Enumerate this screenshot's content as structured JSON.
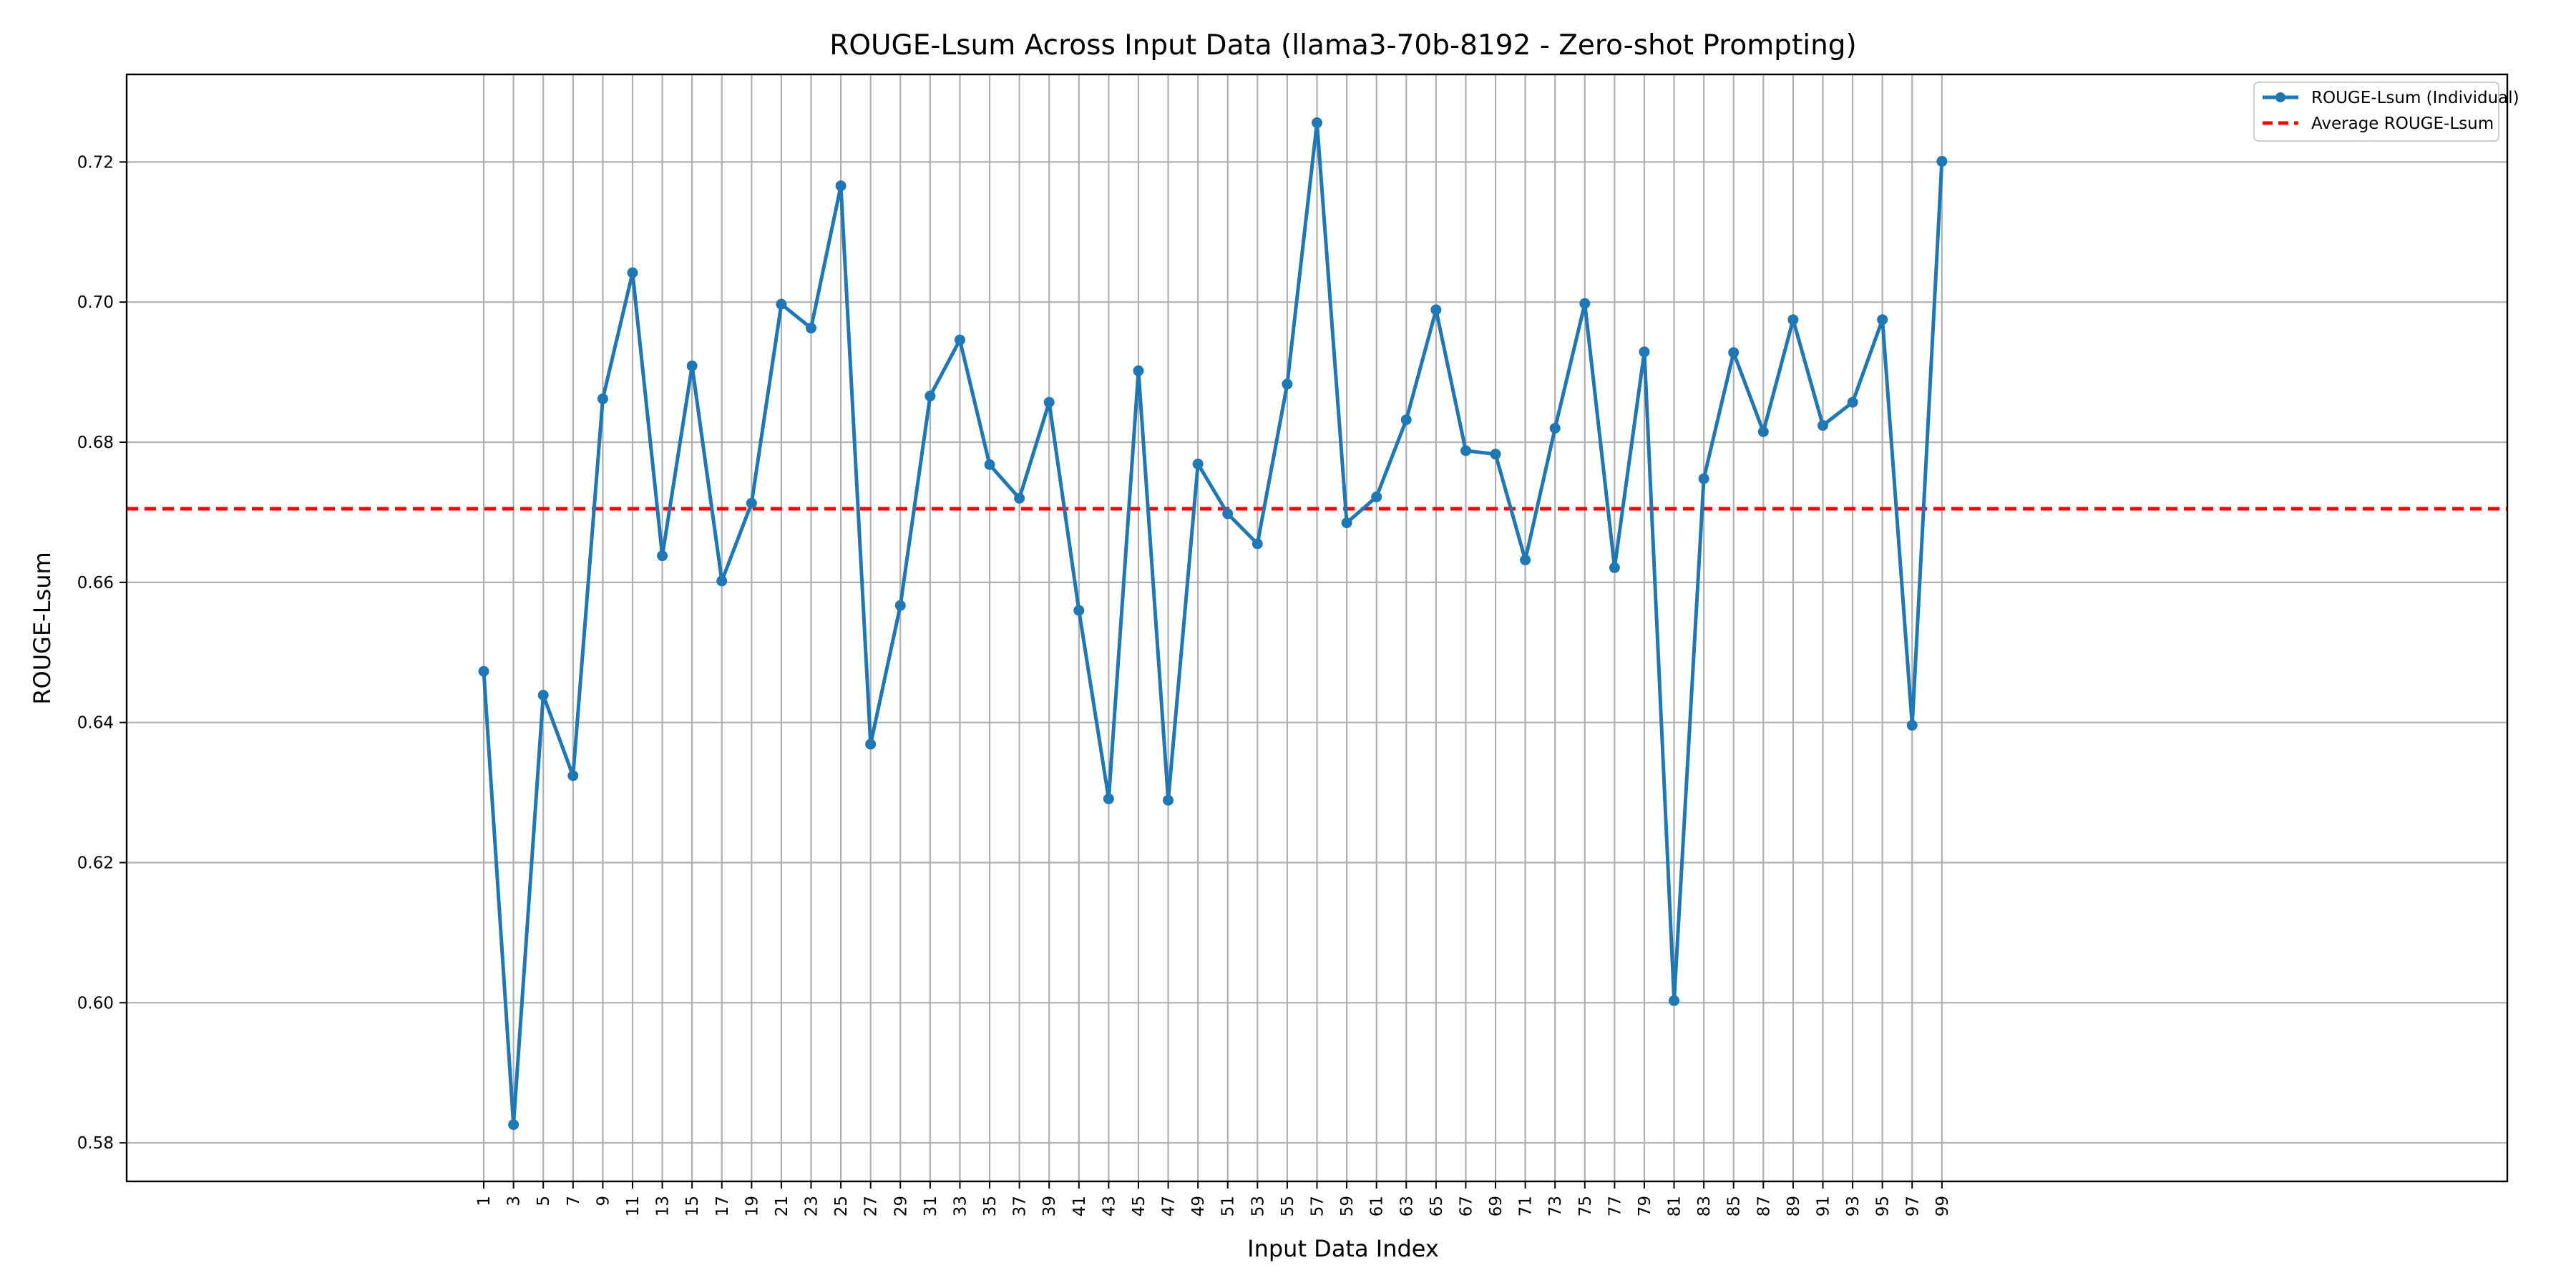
{
  "chart_data": {
    "type": "line",
    "title": "ROUGE-Lsum Across Input Data (llama3-70b-8192 - Zero-shot Prompting)",
    "xlabel": "Input Data Index",
    "ylabel": "ROUGE-Lsum",
    "ylim": [
      0.5745,
      0.7325
    ],
    "xlim": [
      -23,
      137
    ],
    "grid": true,
    "legend_position": "top-right",
    "x": [
      1,
      3,
      5,
      7,
      9,
      11,
      13,
      15,
      17,
      19,
      21,
      23,
      25,
      27,
      29,
      31,
      33,
      35,
      37,
      39,
      41,
      43,
      45,
      47,
      49,
      51,
      53,
      55,
      57,
      59,
      61,
      63,
      65,
      67,
      69,
      71,
      73,
      75,
      77,
      79,
      81,
      83,
      85,
      87,
      89,
      91,
      93,
      95,
      97,
      99
    ],
    "xtick_labels": [
      "1",
      "3",
      "5",
      "7",
      "9",
      "11",
      "13",
      "15",
      "17",
      "19",
      "21",
      "23",
      "25",
      "27",
      "29",
      "31",
      "33",
      "35",
      "37",
      "39",
      "41",
      "43",
      "45",
      "47",
      "49",
      "51",
      "53",
      "55",
      "57",
      "59",
      "61",
      "63",
      "65",
      "67",
      "69",
      "71",
      "73",
      "75",
      "77",
      "79",
      "81",
      "83",
      "85",
      "87",
      "89",
      "91",
      "93",
      "95",
      "97",
      "99"
    ],
    "yticks": [
      0.58,
      0.6,
      0.62,
      0.64,
      0.66,
      0.68,
      0.7,
      0.72
    ],
    "ytick_labels": [
      "0.58",
      "0.60",
      "0.62",
      "0.64",
      "0.66",
      "0.68",
      "0.70",
      "0.72"
    ],
    "series": [
      {
        "name": "ROUGE-Lsum (Individual)",
        "color": "#1f77b4",
        "style": "solid-with-markers",
        "values": [
          0.6473,
          0.5826,
          0.6439,
          0.6324,
          0.6862,
          0.7042,
          0.6638,
          0.6909,
          0.6602,
          0.6713,
          0.6997,
          0.6963,
          0.7166,
          0.6369,
          0.6567,
          0.6866,
          0.6946,
          0.6768,
          0.672,
          0.6857,
          0.656,
          0.6291,
          0.6902,
          0.6289,
          0.6769,
          0.6698,
          0.6655,
          0.6883,
          0.7256,
          0.6685,
          0.6722,
          0.6832,
          0.6989,
          0.6788,
          0.6783,
          0.6632,
          0.682,
          0.6998,
          0.6621,
          0.6929,
          0.6003,
          0.6748,
          0.6928,
          0.6815,
          0.6975,
          0.6824,
          0.6857,
          0.6975,
          0.6396,
          0.7201
        ]
      },
      {
        "name": "Average ROUGE-Lsum",
        "color": "#ff0000",
        "style": "dashed",
        "value": 0.6705
      }
    ]
  }
}
